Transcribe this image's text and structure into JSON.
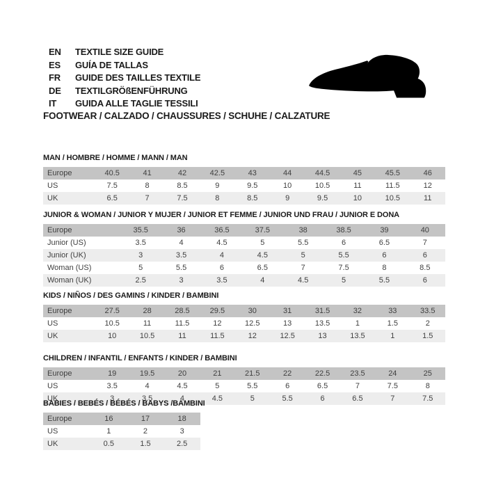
{
  "header": {
    "languages": [
      {
        "code": "EN",
        "text": "TEXTILE SIZE GUIDE"
      },
      {
        "code": "ES",
        "text": "GUÍA DE TALLAS"
      },
      {
        "code": "FR",
        "text": "GUIDE DES TAILLES TEXTILE"
      },
      {
        "code": "DE",
        "text": "TEXTILGRÖßENFÜHRUNG"
      },
      {
        "code": "IT",
        "text": "GUIDA ALLE TAGLIE TESSILI"
      }
    ],
    "category_line": "FOOTWEAR / CALZADO / CHAUSSURES / SCHUHE / CALZATURE",
    "shoe_icon": "black dress-shoe silhouette pointing left"
  },
  "colors": {
    "header_row_bg": "#c4c4c4",
    "alt_row_bg": "#ededed",
    "table_text": "#3f3f3f",
    "title_text": "#1a1a1a",
    "background": "#ffffff"
  },
  "tables": [
    {
      "id": "man",
      "title": "MAN / HOMBRE / HOMME / MANN / MAN",
      "rows": [
        {
          "label": "Europe",
          "values": [
            "40.5",
            "41",
            "42",
            "42.5",
            "43",
            "44",
            "44.5",
            "45",
            "45.5",
            "46"
          ]
        },
        {
          "label": "US",
          "values": [
            "7.5",
            "8",
            "8.5",
            "9",
            "9.5",
            "10",
            "10.5",
            "11",
            "11.5",
            "12"
          ]
        },
        {
          "label": "UK",
          "values": [
            "6.5",
            "7",
            "7.5",
            "8",
            "8.5",
            "9",
            "9.5",
            "10",
            "10.5",
            "11"
          ]
        }
      ]
    },
    {
      "id": "junior-woman",
      "title": "JUNIOR & WOMAN / JUNIOR Y MUJER / JUNIOR ET FEMME / JUNIOR UND FRAU / JUNIOR E DONA",
      "rows": [
        {
          "label": "Europe",
          "values": [
            "35.5",
            "36",
            "36.5",
            "37.5",
            "38",
            "38.5",
            "39",
            "40"
          ]
        },
        {
          "label": "Junior (US)",
          "values": [
            "3.5",
            "4",
            "4.5",
            "5",
            "5.5",
            "6",
            "6.5",
            "7"
          ]
        },
        {
          "label": "Junior (UK)",
          "values": [
            "3",
            "3.5",
            "4",
            "4.5",
            "5",
            "5.5",
            "6",
            "6"
          ]
        },
        {
          "label": "Woman (US)",
          "values": [
            "5",
            "5.5",
            "6",
            "6.5",
            "7",
            "7.5",
            "8",
            "8.5"
          ]
        },
        {
          "label": "Woman (UK)",
          "values": [
            "2.5",
            "3",
            "3.5",
            "4",
            "4.5",
            "5",
            "5.5",
            "6"
          ]
        }
      ]
    },
    {
      "id": "kids",
      "title": "KIDS / NIÑOS / DES GAMINS / KINDER / BAMBINI",
      "rows": [
        {
          "label": "Europe",
          "values": [
            "27.5",
            "28",
            "28.5",
            "29.5",
            "30",
            "31",
            "31.5",
            "32",
            "33",
            "33.5"
          ]
        },
        {
          "label": "US",
          "values": [
            "10.5",
            "11",
            "11.5",
            "12",
            "12.5",
            "13",
            "13.5",
            "1",
            "1.5",
            "2"
          ]
        },
        {
          "label": "UK",
          "values": [
            "10",
            "10.5",
            "11",
            "11.5",
            "12",
            "12.5",
            "13",
            "13.5",
            "1",
            "1.5"
          ]
        }
      ]
    },
    {
      "id": "children",
      "title": "CHILDREN / INFANTIL / ENFANTS / KINDER / BAMBINI",
      "rows": [
        {
          "label": "Europe",
          "values": [
            "19",
            "19.5",
            "20",
            "21",
            "21.5",
            "22",
            "22.5",
            "23.5",
            "24",
            "25"
          ]
        },
        {
          "label": "US",
          "values": [
            "3.5",
            "4",
            "4.5",
            "5",
            "5.5",
            "6",
            "6.5",
            "7",
            "7.5",
            "8"
          ]
        },
        {
          "label": "UK",
          "values": [
            "3",
            "3.5",
            "4",
            "4.5",
            "5",
            "5.5",
            "6",
            "6.5",
            "7",
            "7.5"
          ]
        }
      ]
    },
    {
      "id": "babies",
      "title": "BABIES / BEBÉS / BÉBÉS / BABYS /BAMBINI",
      "rows": [
        {
          "label": "Europe",
          "values": [
            "16",
            "17",
            "18"
          ]
        },
        {
          "label": "US",
          "values": [
            "1",
            "2",
            "3"
          ]
        },
        {
          "label": "UK",
          "values": [
            "0.5",
            "1.5",
            "2.5"
          ]
        }
      ]
    }
  ]
}
